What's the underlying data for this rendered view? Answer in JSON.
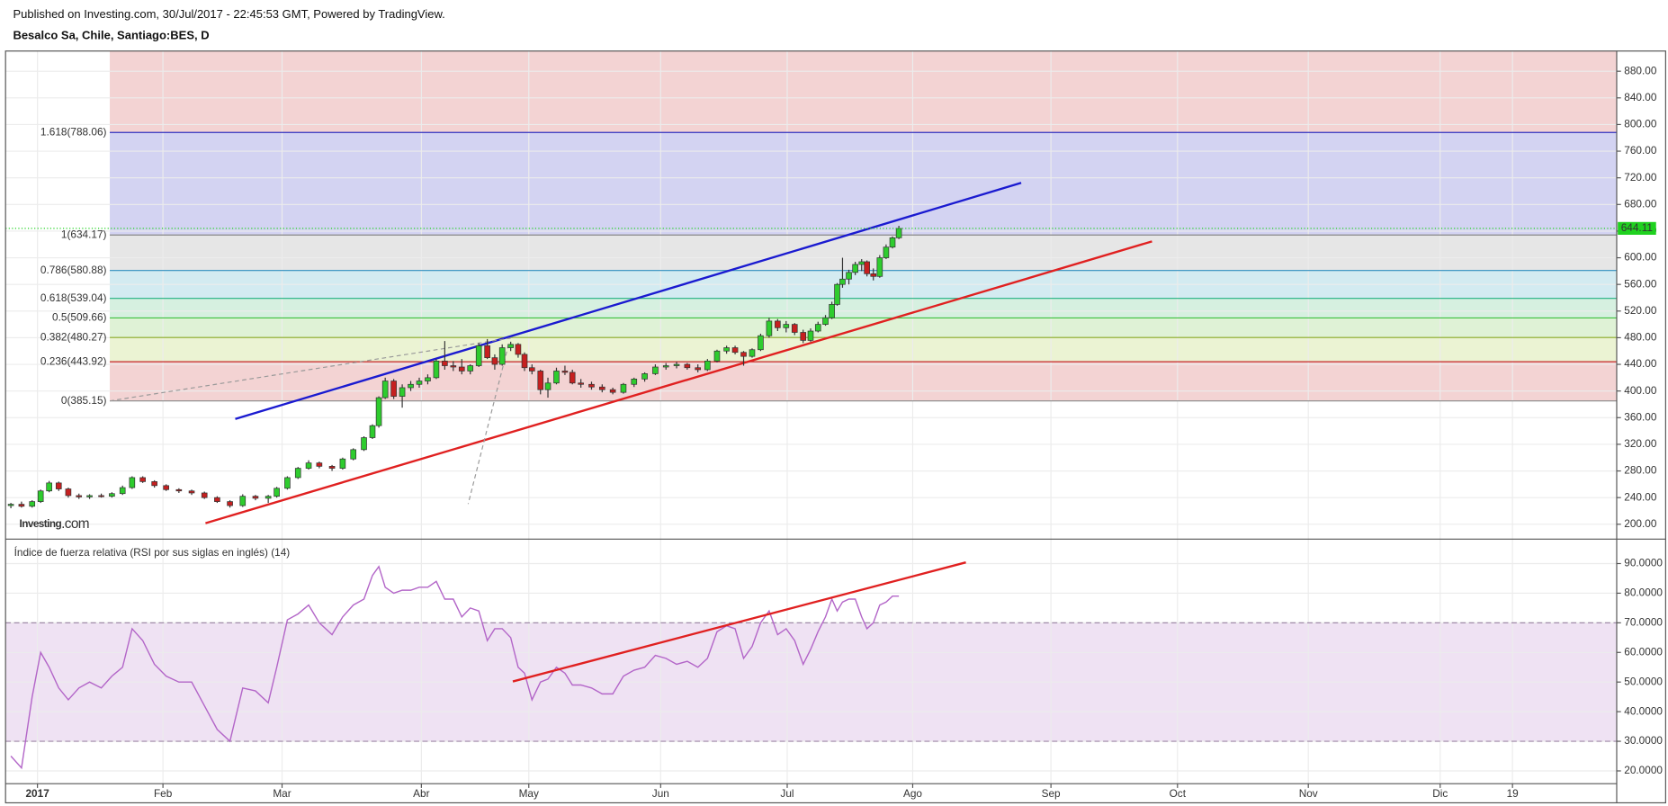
{
  "header": {
    "published": "Published on Investing.com, 30/Jul/2017 - 22:45:53 GMT, Powered by TradingView.",
    "symbol": "Besalco Sa, Chile, Santiago:BES, D"
  },
  "chart_data": [
    {
      "type": "candlestick",
      "watermark": {
        "name": "Investing",
        "suffix": ".com"
      },
      "up_color": "#2ecc2e",
      "down_color": "#c62020",
      "grid": true,
      "xlim": [
        0,
        378.75
      ],
      "ylim": [
        177.7,
        910.3
      ],
      "yticks": [
        {
          "value": 200,
          "label": "200.00"
        },
        {
          "value": 240,
          "label": "240.00"
        },
        {
          "value": 280,
          "label": "280.00"
        },
        {
          "value": 320,
          "label": "320.00"
        },
        {
          "value": 360,
          "label": "360.00"
        },
        {
          "value": 400,
          "label": "400.00"
        },
        {
          "value": 440,
          "label": "440.00"
        },
        {
          "value": 480,
          "label": "480.00"
        },
        {
          "value": 520,
          "label": "520.00"
        },
        {
          "value": 560,
          "label": "560.00"
        },
        {
          "value": 600,
          "label": "600.00"
        },
        {
          "value": 640,
          "label": "640.00"
        },
        {
          "value": 680,
          "label": "680.00"
        },
        {
          "value": 720,
          "label": "720.00"
        },
        {
          "value": 760,
          "label": "760.00"
        },
        {
          "value": 800,
          "label": "800.00"
        },
        {
          "value": 840,
          "label": "840.00"
        },
        {
          "value": 880,
          "label": "880.00"
        }
      ],
      "x": [
        1.25,
        3.75,
        6.25,
        8.25,
        10.25,
        12.5,
        14.75,
        17.25,
        19.75,
        22.5,
        25,
        27.5,
        29.75,
        32.25,
        35,
        37.75,
        40.75,
        43.75,
        46.75,
        49.75,
        52.75,
        55.75,
        58.75,
        61.75,
        63.75,
        66.25,
        68.75,
        71.25,
        73.75,
        76.75,
        79.25,
        81.75,
        84.25,
        86.25,
        87.75,
        89.25,
        91.25,
        93.25,
        95.25,
        97.25,
        99.25,
        101.25,
        103.25,
        105.25,
        107.25,
        109.25,
        111.25,
        113.25,
        115,
        116.75,
        118.75,
        120.5,
        122,
        123.75,
        125.75,
        127.5,
        129.5,
        131.5,
        133.25,
        135.25,
        137.75,
        140.25,
        142.75,
        145.25,
        147.75,
        150.25,
        152.75,
        155.25,
        157.75,
        160.25,
        162.75,
        165,
        167.25,
        169.5,
        171.5,
        173.5,
        175.5,
        177.5,
        179.5,
        181.5,
        183.5,
        185.5,
        187.5,
        189.25,
        191,
        192.75,
        194.25,
        195.5,
        196.75,
        198.25,
        199.75,
        201.25,
        202.5,
        204,
        205.5,
        207,
        208.5,
        210
      ],
      "open": [
        228,
        230,
        227,
        234,
        250,
        262,
        253,
        243,
        241,
        243,
        242,
        246,
        255,
        270,
        264,
        258,
        252,
        250,
        247,
        240,
        234,
        228,
        242,
        239,
        242,
        254,
        270,
        284,
        292,
        287,
        284,
        298,
        312,
        330,
        348,
        390,
        415,
        392,
        405,
        410,
        415,
        420,
        445,
        438,
        436,
        430,
        438,
        468,
        450,
        440,
        465,
        470,
        455,
        435,
        430,
        402,
        412,
        430,
        428,
        412,
        410,
        406,
        402,
        398,
        410,
        418,
        426,
        436,
        438,
        440,
        435,
        432,
        445,
        460,
        465,
        458,
        452,
        462,
        483,
        505,
        495,
        500,
        488,
        476,
        490,
        500,
        510,
        530,
        560,
        568,
        578,
        590,
        594,
        576,
        572,
        600,
        616,
        630
      ],
      "high": [
        232,
        234,
        236,
        252,
        265,
        264,
        255,
        246,
        245,
        246,
        248,
        258,
        272,
        272,
        266,
        260,
        254,
        252,
        249,
        242,
        236,
        245,
        244,
        244,
        256,
        272,
        286,
        296,
        294,
        289,
        300,
        314,
        332,
        350,
        392,
        420,
        418,
        410,
        415,
        420,
        425,
        448,
        475,
        445,
        448,
        440,
        472,
        478,
        455,
        470,
        474,
        472,
        458,
        440,
        432,
        420,
        435,
        438,
        432,
        418,
        414,
        410,
        405,
        412,
        420,
        428,
        440,
        442,
        444,
        442,
        440,
        448,
        462,
        468,
        468,
        460,
        464,
        486,
        510,
        508,
        505,
        502,
        492,
        494,
        504,
        514,
        534,
        562,
        600,
        582,
        594,
        598,
        596,
        584,
        604,
        620,
        632,
        648
      ],
      "low": [
        224,
        225,
        225,
        232,
        248,
        250,
        240,
        238,
        238,
        240,
        240,
        244,
        253,
        262,
        255,
        250,
        247,
        244,
        238,
        232,
        225,
        226,
        236,
        232,
        240,
        252,
        268,
        282,
        284,
        280,
        282,
        296,
        310,
        328,
        345,
        388,
        388,
        375,
        400,
        405,
        410,
        418,
        432,
        430,
        425,
        425,
        436,
        448,
        432,
        438,
        460,
        450,
        430,
        425,
        395,
        390,
        410,
        424,
        410,
        405,
        402,
        398,
        395,
        396,
        406,
        414,
        424,
        432,
        434,
        432,
        428,
        430,
        443,
        456,
        455,
        438,
        450,
        460,
        480,
        490,
        488,
        484,
        472,
        474,
        488,
        498,
        508,
        528,
        555,
        560,
        574,
        580,
        572,
        566,
        570,
        598,
        614,
        628
      ],
      "close": [
        230,
        227,
        234,
        250,
        262,
        253,
        243,
        241,
        243,
        242,
        246,
        255,
        270,
        264,
        258,
        252,
        250,
        247,
        240,
        234,
        228,
        242,
        239,
        242,
        254,
        270,
        284,
        292,
        287,
        284,
        298,
        312,
        330,
        348,
        390,
        415,
        392,
        405,
        410,
        415,
        420,
        445,
        438,
        436,
        430,
        438,
        468,
        450,
        440,
        465,
        470,
        455,
        435,
        430,
        402,
        412,
        430,
        428,
        412,
        410,
        406,
        402,
        398,
        410,
        418,
        426,
        436,
        438,
        440,
        435,
        432,
        445,
        460,
        465,
        458,
        452,
        462,
        483,
        505,
        495,
        500,
        488,
        476,
        490,
        500,
        510,
        530,
        560,
        568,
        578,
        590,
        594,
        576,
        572,
        600,
        616,
        630,
        644
      ],
      "last_price": 644.11,
      "last_price_color": "#1fd11f",
      "fib": {
        "x_start": 24.5,
        "levels": [
          {
            "ratio": 0,
            "price": 385.15,
            "label": "0(385.15)",
            "color": "#888888"
          },
          {
            "ratio": 0.236,
            "price": 443.92,
            "label": "0.236(443.92)",
            "color": "#c62828"
          },
          {
            "ratio": 0.382,
            "price": 480.27,
            "label": "0.382(480.27)",
            "color": "#8aab1f"
          },
          {
            "ratio": 0.5,
            "price": 509.66,
            "label": "0.5(509.66)",
            "color": "#3fbf3f"
          },
          {
            "ratio": 0.618,
            "price": 539.04,
            "label": "0.618(539.04)",
            "color": "#20b080"
          },
          {
            "ratio": 0.786,
            "price": 580.88,
            "label": "0.786(580.88)",
            "color": "#2f8fc0"
          },
          {
            "ratio": 1,
            "price": 634.17,
            "label": "1(634.17)",
            "color": "#888888"
          },
          {
            "ratio": 1.618,
            "price": 788.06,
            "label": "1.618(788.06)",
            "color": "#3030c0"
          }
        ],
        "band_colors": [
          "#f3d3d3",
          "#ebf3d3",
          "#dff2d6",
          "#d6f0e0",
          "#d3ebf1",
          "#e6e6e6",
          "#d3d3f2"
        ],
        "top_band_color": "#f3d3d3"
      },
      "trendlines": [
        {
          "color": "#1a1ad0",
          "x": [
            54,
            238.75
          ],
          "y": [
            358,
            712.4
          ],
          "dashed": false
        },
        {
          "color": "#e02020",
          "x": [
            47,
            269.5
          ],
          "y": [
            201.6,
            624.6
          ],
          "dashed": false
        },
        {
          "color": "#999999",
          "x": [
            24.5,
            118.75
          ],
          "y": [
            385.15,
            479.4
          ],
          "dashed": true
        },
        {
          "color": "#999999",
          "x": [
            118.25,
            108.75
          ],
          "y": [
            470,
            230.4
          ],
          "dashed": true
        }
      ]
    },
    {
      "type": "line",
      "title": "Índice de fuerza relativa (RSI por sus siglas en inglés) (14)",
      "grid": true,
      "xlim": [
        0,
        378.75
      ],
      "ylim": [
        15.69,
        98.26
      ],
      "xticks": [
        {
          "value": 7.5,
          "label": "2017"
        },
        {
          "value": 37,
          "label": "Feb"
        },
        {
          "value": 65,
          "label": "Mar"
        },
        {
          "value": 97.75,
          "label": "Abr"
        },
        {
          "value": 123,
          "label": "May"
        },
        {
          "value": 154,
          "label": "Jun"
        },
        {
          "value": 183.75,
          "label": "Jul"
        },
        {
          "value": 213.25,
          "label": "Ago"
        },
        {
          "value": 245.75,
          "label": "Sep"
        },
        {
          "value": 275.5,
          "label": "Oct"
        },
        {
          "value": 306.25,
          "label": "Nov"
        },
        {
          "value": 337.25,
          "label": "Dic"
        },
        {
          "value": 354.25,
          "label": "19"
        }
      ],
      "yticks": [
        {
          "value": 20,
          "label": "20.0000"
        },
        {
          "value": 30,
          "label": "30.0000"
        },
        {
          "value": 40,
          "label": "40.0000"
        },
        {
          "value": 50,
          "label": "50.0000"
        },
        {
          "value": 60,
          "label": "60.0000"
        },
        {
          "value": 70,
          "label": "70.0000"
        },
        {
          "value": 80,
          "label": "80.0000"
        },
        {
          "value": 90,
          "label": "90.0000"
        }
      ],
      "band": [
        30,
        70
      ],
      "band_color": "#efe2f3",
      "x": [
        1.25,
        3.75,
        6.25,
        8.25,
        10.25,
        12.5,
        14.75,
        17.25,
        19.75,
        22.5,
        25,
        27.5,
        29.75,
        32.25,
        35,
        37.75,
        40.75,
        43.75,
        46.75,
        49.75,
        52.75,
        55.75,
        58.75,
        61.75,
        63.75,
        66.25,
        68.75,
        71.25,
        73.75,
        76.75,
        79.25,
        81.75,
        84.25,
        86.25,
        87.75,
        89.25,
        91.25,
        93.25,
        95.25,
        97.25,
        99.25,
        101.25,
        103.25,
        105.25,
        107.25,
        109.25,
        111.25,
        113.25,
        115,
        116.75,
        118.75,
        120.5,
        122,
        123.75,
        125.75,
        127.5,
        129.5,
        131.5,
        133.25,
        135.25,
        137.75,
        140.25,
        142.75,
        145.25,
        147.75,
        150.25,
        152.75,
        155.25,
        157.75,
        160.25,
        162.75,
        165,
        167.25,
        169.5,
        171.5,
        173.5,
        175.5,
        177.5,
        179.5,
        181.5,
        183.5,
        185.5,
        187.5,
        189.25,
        191,
        192.75,
        194.25,
        195.5,
        196.75,
        198.25,
        199.75,
        201.25,
        202.5,
        204,
        205.5,
        207,
        208.5,
        210
      ],
      "series": [
        {
          "color": "#b366c8",
          "values": [
            25,
            21,
            45,
            60,
            55,
            48,
            44,
            48,
            50,
            48,
            52,
            55,
            68,
            64,
            56,
            52,
            50,
            50,
            42,
            34,
            30,
            48,
            47,
            43,
            55,
            71,
            73,
            76,
            70,
            66,
            72,
            76,
            78,
            86,
            89,
            82,
            80,
            81,
            81,
            82,
            82,
            84,
            78,
            78,
            72,
            75,
            74,
            64,
            68,
            68,
            65,
            55,
            53,
            44,
            50,
            51,
            55,
            53,
            49,
            49,
            48,
            46,
            46,
            52,
            54,
            55,
            59,
            58,
            56,
            57,
            55,
            58,
            67,
            69,
            68,
            58,
            62,
            70,
            74,
            66,
            68,
            64,
            56,
            61,
            67,
            72,
            78,
            74,
            77,
            78,
            78,
            72,
            68,
            70,
            76,
            77,
            79,
            79
          ]
        }
      ],
      "trendlines": [
        {
          "color": "#e02020",
          "x": [
            119.25,
            225.75
          ],
          "y": [
            50.2,
            90.4
          ],
          "dashed": false
        }
      ]
    }
  ]
}
